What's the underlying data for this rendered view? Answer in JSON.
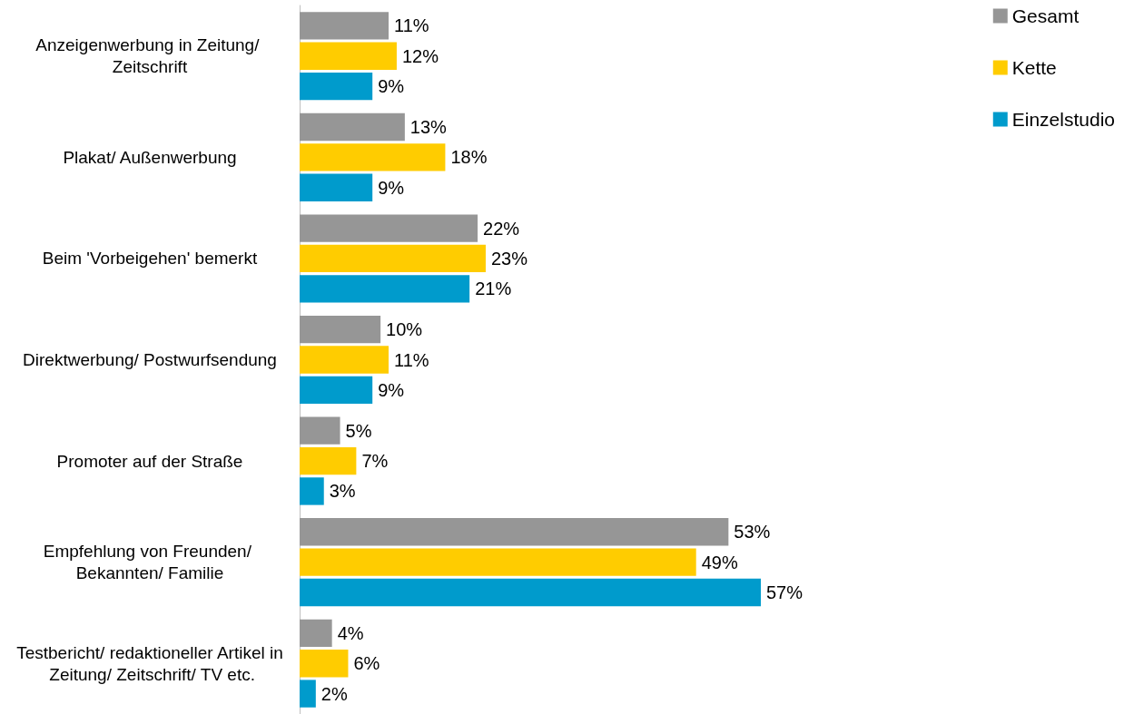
{
  "chart_data": {
    "type": "bar",
    "orientation": "horizontal",
    "legend": "top right",
    "categories": [
      "Anzeigenwerbung in Zeitung/ Zeitschrift",
      "Plakat/ Außenwerbung",
      "Beim 'Vorbeigehen' bemerkt",
      "Direktwerbung/ Postwurfsendung",
      "Promoter auf der Straße",
      "Empfehlung von Freunden/ Bekannten/ Familie",
      "Testbericht/ redaktioneller Artikel in Zeitung/ Zeitschrift/ TV etc."
    ],
    "series": [
      {
        "name": "Gesamt",
        "color": "#969696",
        "values": [
          11,
          13,
          22,
          10,
          5,
          53,
          4
        ],
        "value_labels": [
          "11%",
          "13%",
          "22%",
          "10%",
          "5%",
          "53%",
          "4%"
        ]
      },
      {
        "name": "Kette",
        "color": "#ffcc00",
        "values": [
          12,
          18,
          23,
          11,
          7,
          49,
          6
        ],
        "value_labels": [
          "12%",
          "18%",
          "23%",
          "11%",
          "7%",
          "49%",
          "6%"
        ]
      },
      {
        "name": "Einzelstudio",
        "color": "#009bcc",
        "values": [
          9,
          9,
          21,
          9,
          3,
          57,
          2
        ],
        "value_labels": [
          "9%",
          "9%",
          "21%",
          "9%",
          "3%",
          "57%",
          "2%"
        ]
      }
    ]
  }
}
